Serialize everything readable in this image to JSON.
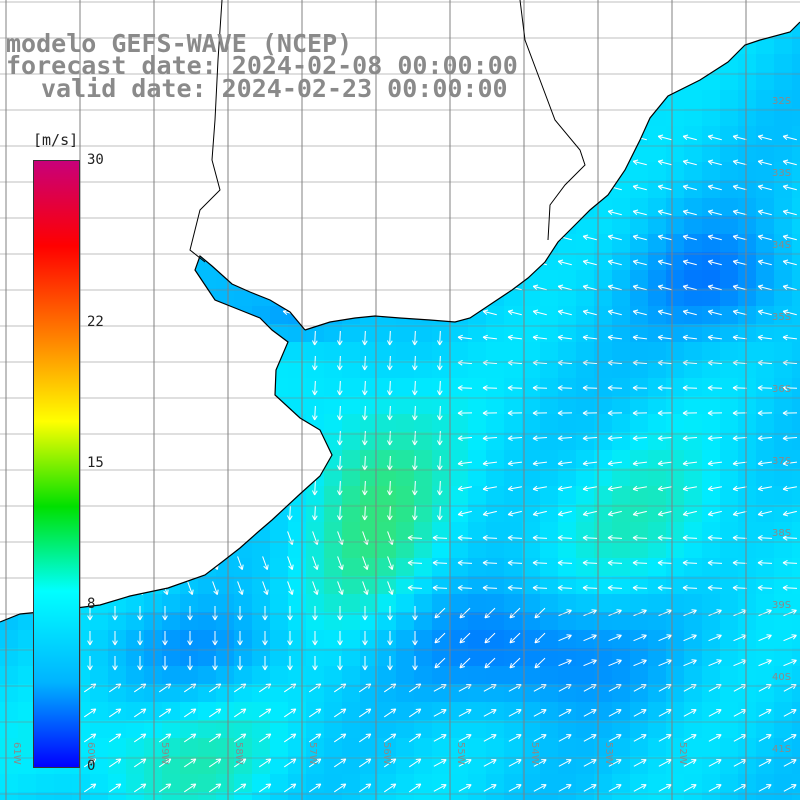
{
  "title": {
    "model": "modelo GEFS-WAVE (NCEP)",
    "forecast": "forecast date: 2024-02-08 00:00:00",
    "valid": "valid date: 2024-02-23 00:00:00"
  },
  "colorbar": {
    "unit": "[m/s]",
    "ticks": [
      {
        "label": "30",
        "value": 30
      },
      {
        "label": "22",
        "value": 22
      },
      {
        "label": "15",
        "value": 15
      },
      {
        "label": "8",
        "value": 8
      },
      {
        "label": "0",
        "value": 0
      }
    ],
    "colors": [
      "#0000ff",
      "#00b4ff",
      "#00ffff",
      "#00e000",
      "#ffff00",
      "#ff8000",
      "#ff0000",
      "#c8007a"
    ]
  },
  "map": {
    "lat_labels": [
      "32S",
      "33S",
      "34S",
      "35S",
      "36S",
      "37S",
      "38S",
      "39S",
      "40S",
      "41S"
    ],
    "lon_labels": [
      "61W",
      "60W",
      "59W",
      "58W",
      "57W",
      "56W",
      "55W",
      "54W",
      "53W",
      "52W"
    ],
    "land_color": "#ffffff",
    "grid_color": "#808080"
  }
}
